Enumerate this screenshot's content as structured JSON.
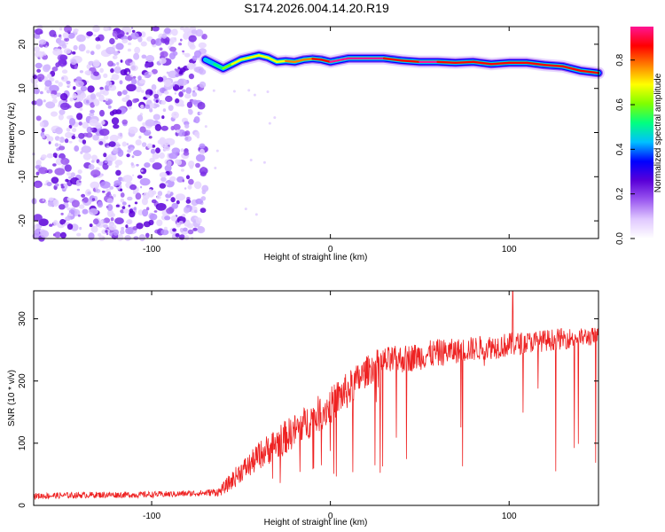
{
  "chart_data": [
    {
      "type": "heatmap",
      "title": "S174.2026.004.14.20.R19",
      "xlabel": "Height of straight line (km)",
      "ylabel": "Frequency (Hz)",
      "xlim": [
        -166,
        150
      ],
      "ylim": [
        -24,
        24
      ],
      "x_ticks": [
        -100,
        0,
        100
      ],
      "y_ticks": [
        -20,
        -10,
        0,
        10,
        20
      ],
      "x_tick_labels": [
        "-100",
        "0",
        "100"
      ],
      "y_tick_labels": [
        "-20",
        "-10",
        "0",
        "10",
        "20"
      ],
      "noise_region_x": [
        -166,
        -70
      ],
      "ridge": {
        "x": [
          -70,
          -65,
          -60,
          -55,
          -50,
          -45,
          -40,
          -35,
          -30,
          -25,
          -20,
          -15,
          -10,
          -5,
          0,
          10,
          20,
          30,
          40,
          50,
          60,
          70,
          80,
          90,
          100,
          110,
          120,
          130,
          140,
          150
        ],
        "freq": [
          16.5,
          15.5,
          14.5,
          15.5,
          16.5,
          17.0,
          17.5,
          17.0,
          16.0,
          16.2,
          16.0,
          16.5,
          16.7,
          16.5,
          16.0,
          16.8,
          16.8,
          16.8,
          16.3,
          16.0,
          16.0,
          15.8,
          16.0,
          15.5,
          15.8,
          15.8,
          15.3,
          15.0,
          14.0,
          13.5
        ],
        "amplitude": [
          0.45,
          0.4,
          0.55,
          0.6,
          0.7,
          0.72,
          0.68,
          0.75,
          0.7,
          0.72,
          0.75,
          0.8,
          0.82,
          0.85,
          0.9,
          0.95,
          0.95,
          0.93,
          0.85,
          0.9,
          0.92,
          0.88,
          0.9,
          0.85,
          0.85,
          0.82,
          0.85,
          0.88,
          0.9,
          0.88
        ]
      },
      "colorbar": {
        "label": "Normalized spectral amplitude",
        "range": [
          0.0,
          0.95
        ],
        "ticks": [
          0.0,
          0.2,
          0.4,
          0.6,
          0.8
        ],
        "tick_labels": [
          "0.0",
          "0.2",
          "0.4",
          "0.6",
          "0.8"
        ],
        "colors": [
          "#ffffff",
          "#e0c8ff",
          "#9b59f0",
          "#5a00d8",
          "#0000ff",
          "#00c0ff",
          "#00ff80",
          "#80ff00",
          "#ffff00",
          "#ff8000",
          "#ff0000",
          "#ff1493"
        ]
      }
    },
    {
      "type": "line",
      "xlabel": "Height of straight line (km)",
      "ylabel": "SNR (10 * v/v)",
      "xlim": [
        -166,
        150
      ],
      "ylim": [
        0,
        345
      ],
      "x_ticks": [
        -100,
        0,
        100
      ],
      "y_ticks": [
        0,
        100,
        200,
        300
      ],
      "x_tick_labels": [
        "-100",
        "0",
        "100"
      ],
      "y_tick_labels": [
        "0",
        "100",
        "200",
        "300"
      ],
      "color": "#ee2222",
      "series": [
        {
          "name": "SNR",
          "x": [
            -166,
            -150,
            -130,
            -110,
            -90,
            -70,
            -62,
            -55,
            -50,
            -45,
            -40,
            -35,
            -30,
            -25,
            -20,
            -15,
            -10,
            -5,
            0,
            5,
            10,
            15,
            20,
            25,
            30,
            40,
            50,
            60,
            70,
            80,
            90,
            100,
            110,
            120,
            130,
            140,
            150
          ],
          "y": [
            15,
            16,
            17,
            17,
            18,
            20,
            22,
            40,
            55,
            65,
            80,
            90,
            100,
            110,
            120,
            130,
            140,
            150,
            160,
            175,
            185,
            200,
            215,
            225,
            230,
            235,
            240,
            245,
            248,
            252,
            255,
            258,
            262,
            265,
            268,
            270,
            272
          ],
          "spread": [
            10,
            10,
            10,
            10,
            10,
            10,
            15,
            30,
            35,
            40,
            45,
            50,
            55,
            55,
            55,
            55,
            60,
            60,
            60,
            60,
            60,
            55,
            50,
            50,
            50,
            45,
            45,
            45,
            40,
            40,
            40,
            40,
            35,
            35,
            35,
            30,
            30
          ]
        }
      ],
      "annotations": [
        {
          "x": 102,
          "y": 345,
          "text": ""
        }
      ]
    }
  ]
}
